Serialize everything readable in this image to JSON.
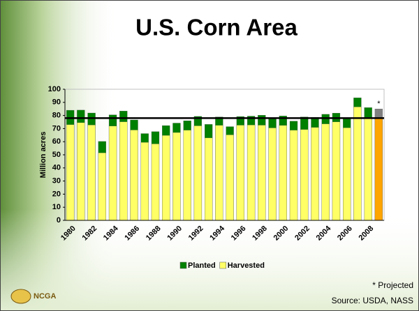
{
  "chart_data": {
    "type": "bar",
    "title": "U.S. Corn Area",
    "y_label": "Million acres",
    "categories": [
      "1980",
      null,
      "1982",
      null,
      "1984",
      null,
      "1986",
      null,
      "1988",
      null,
      "1990",
      null,
      "1992",
      null,
      "1994",
      null,
      "1996",
      null,
      "1998",
      null,
      "2000",
      null,
      "2002",
      null,
      "2004",
      null,
      "2006",
      null,
      "2008",
      null
    ],
    "series": [
      {
        "name": "Planted",
        "color": "#008000",
        "projected_color": "#808080",
        "values": [
          84.0,
          84.1,
          81.9,
          60.2,
          80.5,
          83.4,
          76.6,
          66.2,
          67.7,
          72.3,
          74.2,
          76.0,
          79.3,
          73.2,
          78.9,
          71.5,
          79.2,
          79.5,
          80.2,
          77.4,
          79.6,
          75.7,
          78.9,
          78.6,
          80.9,
          81.8,
          78.3,
          93.5,
          86.0,
          85.0
        ]
      },
      {
        "name": "Harvested",
        "color": "#ffff66",
        "projected_color": "#ffa500",
        "values": [
          73.0,
          74.5,
          72.7,
          51.5,
          71.9,
          75.2,
          68.9,
          59.5,
          58.3,
          64.8,
          67.0,
          68.8,
          72.1,
          62.9,
          72.5,
          65.2,
          72.6,
          72.7,
          72.6,
          70.5,
          72.4,
          68.8,
          69.3,
          70.9,
          73.6,
          75.1,
          70.6,
          86.5,
          78.6,
          77.5
        ]
      }
    ],
    "reference_line": 78,
    "projected_marker": "*",
    "ylim": [
      0,
      100
    ],
    "yticks": [
      0,
      10,
      20,
      30,
      40,
      50,
      60,
      70,
      80,
      90,
      100
    ],
    "legend": "bottom",
    "footnote": "* Projected",
    "source": "Source: USDA, NASS",
    "logo": "NCGA"
  }
}
